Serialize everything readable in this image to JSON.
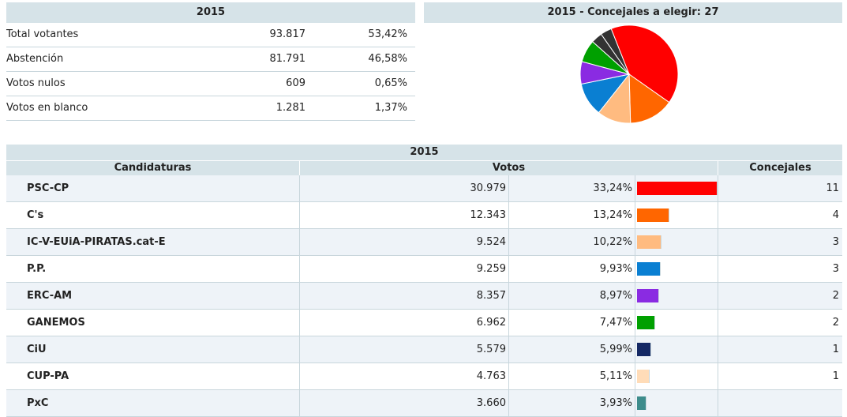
{
  "summary": {
    "title": "2015",
    "rows": [
      {
        "label": "Total votantes",
        "value": "93.817",
        "percent": "53,42%"
      },
      {
        "label": "Abstención",
        "value": "81.791",
        "percent": "46,58%"
      },
      {
        "label": "Votos nulos",
        "value": "609",
        "percent": "0,65%"
      },
      {
        "label": "Votos en blanco",
        "value": "1.281",
        "percent": "1,37%"
      }
    ]
  },
  "pie": {
    "title": "2015 - Concejales a elegir: 27"
  },
  "results": {
    "title": "2015",
    "headers": {
      "party": "Candidaturas",
      "votes": "Votos",
      "seats": "Concejales"
    }
  },
  "chart_data": {
    "type": "pie",
    "title": "2015 - Concejales a elegir: 27",
    "slices": [
      {
        "label": "PSC-CP",
        "value": 11,
        "color": "#ff0000"
      },
      {
        "label": "C's",
        "value": 4,
        "color": "#ff6600"
      },
      {
        "label": "IC-V-EUiA-PIRATAS.cat-E",
        "value": 3,
        "color": "#ffbb80"
      },
      {
        "label": "P.P.",
        "value": 3,
        "color": "#0a7fd2"
      },
      {
        "label": "ERC-AM",
        "value": 2,
        "color": "#8a2be2"
      },
      {
        "label": "GANEMOS",
        "value": 2,
        "color": "#00a000"
      },
      {
        "label": "CiU",
        "value": 1,
        "color": "#333333"
      },
      {
        "label": "CUP-PA",
        "value": 1,
        "color": "#333333"
      }
    ],
    "table": [
      {
        "party": "PSC-CP",
        "votes": "30.979",
        "percent": "33,24%",
        "percent_value": 33.24,
        "seats": "11",
        "color": "#ff0000"
      },
      {
        "party": "C's",
        "votes": "12.343",
        "percent": "13,24%",
        "percent_value": 13.24,
        "seats": "4",
        "color": "#ff6600"
      },
      {
        "party": "IC-V-EUiA-PIRATAS.cat-E",
        "votes": "9.524",
        "percent": "10,22%",
        "percent_value": 10.22,
        "seats": "3",
        "color": "#ffbb80"
      },
      {
        "party": "P.P.",
        "votes": "9.259",
        "percent": "9,93%",
        "percent_value": 9.93,
        "seats": "3",
        "color": "#0a7fd2"
      },
      {
        "party": "ERC-AM",
        "votes": "8.357",
        "percent": "8,97%",
        "percent_value": 8.97,
        "seats": "2",
        "color": "#8a2be2"
      },
      {
        "party": "GANEMOS",
        "votes": "6.962",
        "percent": "7,47%",
        "percent_value": 7.47,
        "seats": "2",
        "color": "#00a000"
      },
      {
        "party": "CiU",
        "votes": "5.579",
        "percent": "5,99%",
        "percent_value": 5.99,
        "seats": "1",
        "color": "#142864"
      },
      {
        "party": "CUP-PA",
        "votes": "4.763",
        "percent": "5,11%",
        "percent_value": 5.11,
        "seats": "1",
        "color": "#ffdcb8"
      },
      {
        "party": "PxC",
        "votes": "3.660",
        "percent": "3,93%",
        "percent_value": 3.93,
        "seats": "",
        "color": "#3d8c8c"
      }
    ],
    "bar_max_percent": 33.24
  }
}
